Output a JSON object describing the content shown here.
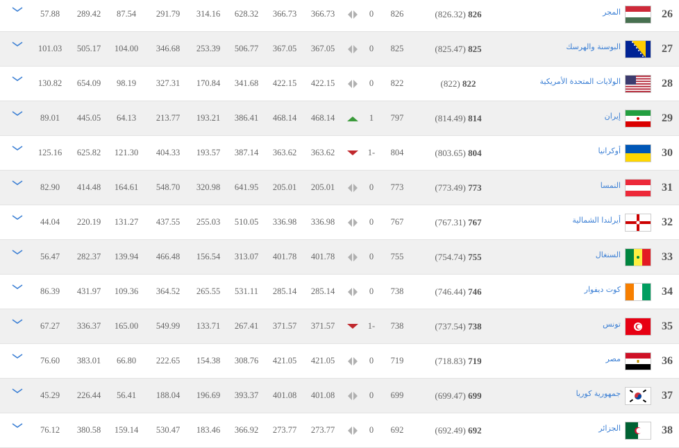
{
  "colors": {
    "link": "#3b7fd4",
    "up": "#3a9a3a",
    "down": "#c0282d",
    "same": "#b0b0b0",
    "alt_row": "#f0f0f0"
  },
  "rows": [
    {
      "rank": "26",
      "name": "المجر",
      "flag": "hungary",
      "points": "826",
      "points_exact": "(826.32)",
      "prev_points": "826",
      "change": "0",
      "trend": "same",
      "cols": [
        "366.73",
        "366.73",
        "628.32",
        "314.16",
        "291.79",
        "87.54",
        "289.42",
        "57.88"
      ]
    },
    {
      "rank": "27",
      "name": "البوسنة والهرسك",
      "flag": "bosnia",
      "points": "825",
      "points_exact": "(825.47)",
      "prev_points": "825",
      "change": "0",
      "trend": "same",
      "cols": [
        "367.05",
        "367.05",
        "506.77",
        "253.39",
        "346.68",
        "104.00",
        "505.17",
        "101.03"
      ]
    },
    {
      "rank": "28",
      "name": "الولايات المتحدة الأمريكية",
      "flag": "usa",
      "points": "822",
      "points_exact": "(822)",
      "prev_points": "822",
      "change": "0",
      "trend": "same",
      "cols": [
        "422.15",
        "422.15",
        "341.68",
        "170.84",
        "327.31",
        "98.19",
        "654.09",
        "130.82"
      ]
    },
    {
      "rank": "29",
      "name": "إيران",
      "flag": "iran",
      "points": "814",
      "points_exact": "(814.49)",
      "prev_points": "797",
      "change": "1",
      "trend": "up",
      "cols": [
        "468.14",
        "468.14",
        "386.41",
        "193.21",
        "213.77",
        "64.13",
        "445.05",
        "89.01"
      ]
    },
    {
      "rank": "30",
      "name": "أوكرانيا",
      "flag": "ukraine",
      "points": "804",
      "points_exact": "(803.65)",
      "prev_points": "804",
      "change": "1-",
      "trend": "down",
      "cols": [
        "363.62",
        "363.62",
        "387.14",
        "193.57",
        "404.33",
        "121.30",
        "625.82",
        "125.16"
      ]
    },
    {
      "rank": "31",
      "name": "النمسا",
      "flag": "austria",
      "points": "773",
      "points_exact": "(773.49)",
      "prev_points": "773",
      "change": "0",
      "trend": "same",
      "cols": [
        "205.01",
        "205.01",
        "641.95",
        "320.98",
        "548.70",
        "164.61",
        "414.48",
        "82.90"
      ]
    },
    {
      "rank": "32",
      "name": "أيرلندا الشمالية",
      "flag": "northern-ireland",
      "points": "767",
      "points_exact": "(767.31)",
      "prev_points": "767",
      "change": "0",
      "trend": "same",
      "cols": [
        "336.98",
        "336.98",
        "510.05",
        "255.03",
        "437.55",
        "131.27",
        "220.19",
        "44.04"
      ]
    },
    {
      "rank": "33",
      "name": "السنغال",
      "flag": "senegal",
      "points": "755",
      "points_exact": "(754.74)",
      "prev_points": "755",
      "change": "0",
      "trend": "same",
      "cols": [
        "401.78",
        "401.78",
        "313.07",
        "156.54",
        "466.48",
        "139.94",
        "282.37",
        "56.47"
      ]
    },
    {
      "rank": "34",
      "name": "كوت ديفوار",
      "flag": "ivory-coast",
      "points": "746",
      "points_exact": "(746.44)",
      "prev_points": "738",
      "change": "0",
      "trend": "same",
      "cols": [
        "285.14",
        "285.14",
        "531.11",
        "265.55",
        "364.52",
        "109.36",
        "431.97",
        "86.39"
      ]
    },
    {
      "rank": "35",
      "name": "تونس",
      "flag": "tunisia",
      "points": "738",
      "points_exact": "(737.54)",
      "prev_points": "738",
      "change": "1-",
      "trend": "down",
      "cols": [
        "371.57",
        "371.57",
        "267.41",
        "133.71",
        "549.99",
        "165.00",
        "336.37",
        "67.27"
      ]
    },
    {
      "rank": "36",
      "name": "مصر",
      "flag": "egypt",
      "points": "719",
      "points_exact": "(718.83)",
      "prev_points": "719",
      "change": "0",
      "trend": "same",
      "cols": [
        "421.05",
        "421.05",
        "308.76",
        "154.38",
        "222.65",
        "66.80",
        "383.01",
        "76.60"
      ]
    },
    {
      "rank": "37",
      "name": "جمهورية كوريا",
      "flag": "south-korea",
      "points": "699",
      "points_exact": "(699.47)",
      "prev_points": "699",
      "change": "0",
      "trend": "same",
      "cols": [
        "401.08",
        "401.08",
        "393.37",
        "196.69",
        "188.04",
        "56.41",
        "226.44",
        "45.29"
      ]
    },
    {
      "rank": "38",
      "name": "الجزائر",
      "flag": "algeria",
      "points": "692",
      "points_exact": "(692.49)",
      "prev_points": "692",
      "change": "0",
      "trend": "same",
      "cols": [
        "273.77",
        "273.77",
        "366.92",
        "183.46",
        "530.47",
        "159.14",
        "380.58",
        "76.12"
      ]
    }
  ]
}
